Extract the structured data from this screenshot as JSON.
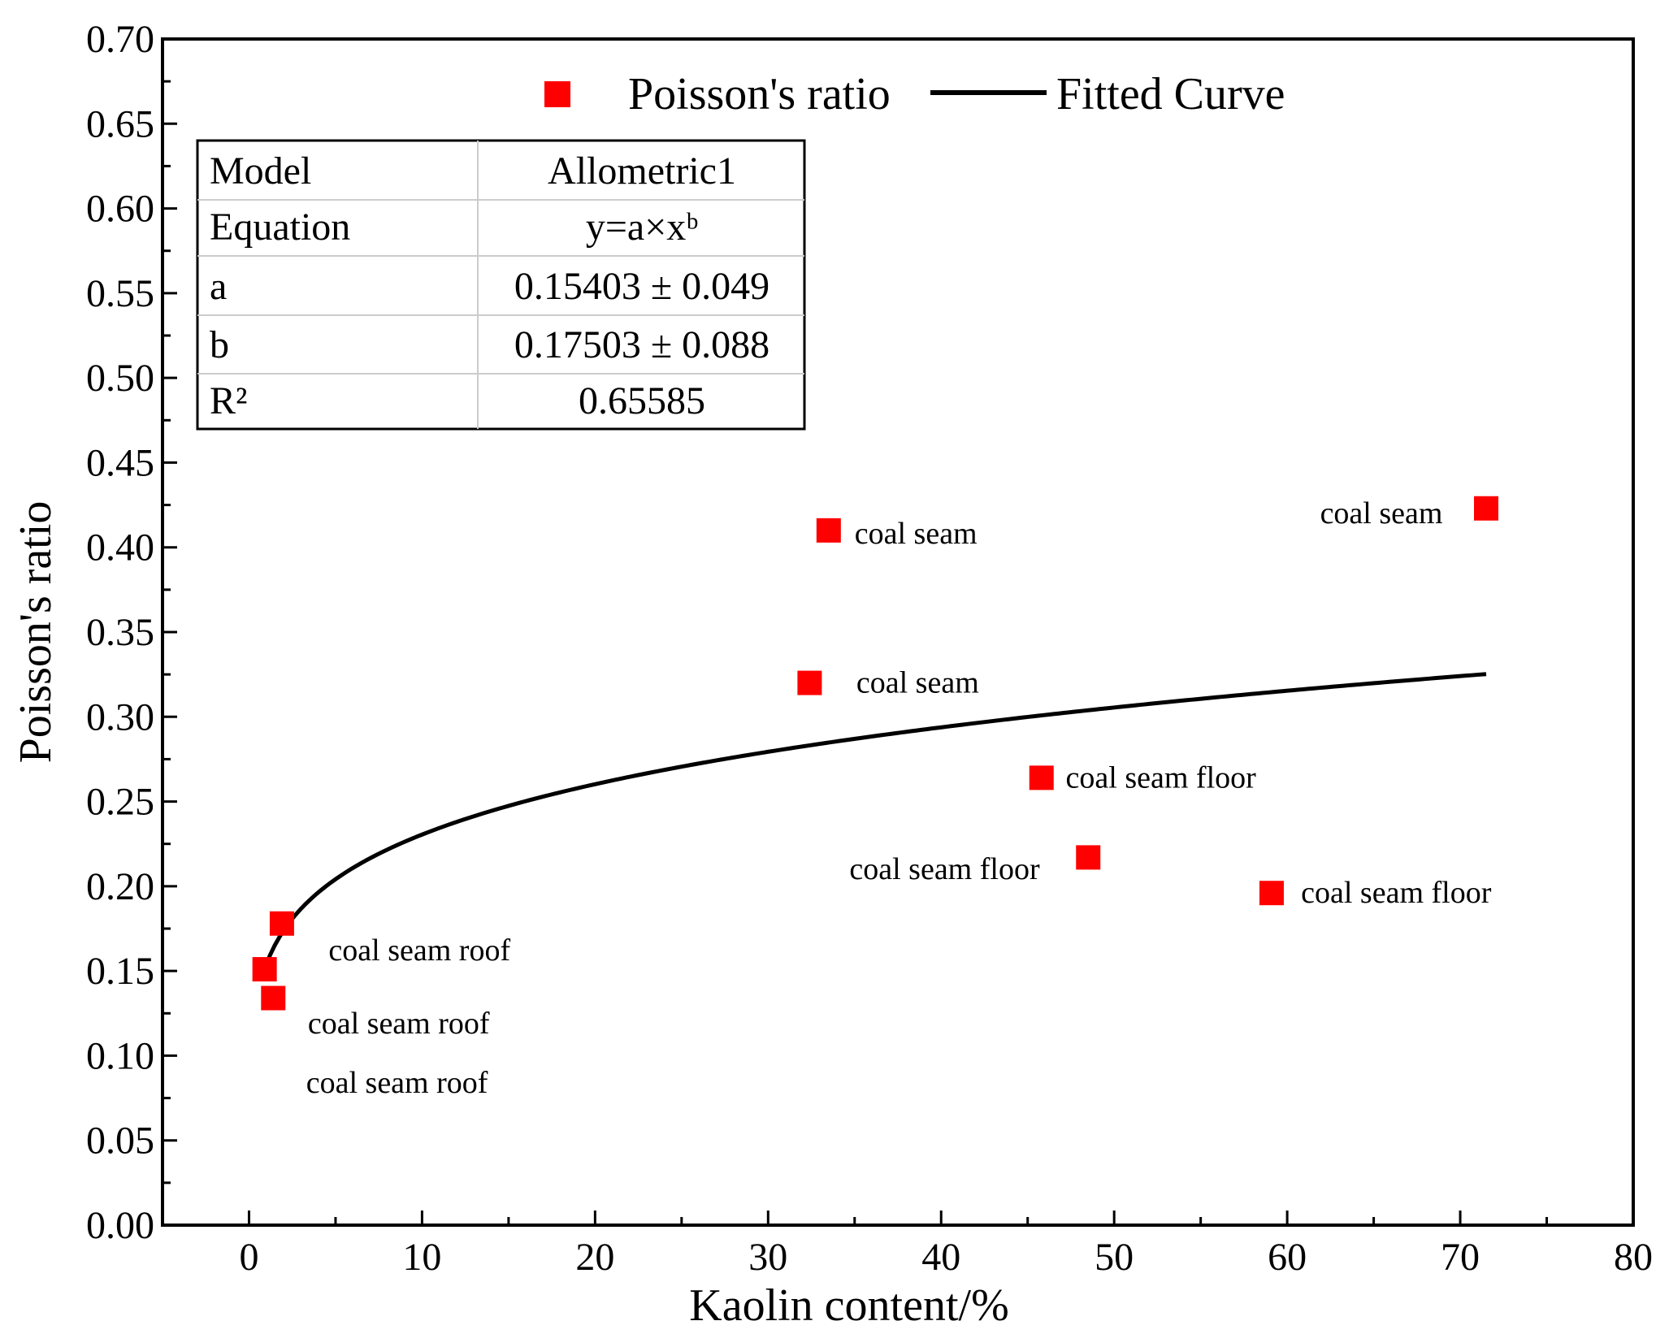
{
  "chart_data": {
    "type": "scatter",
    "xlabel": "Kaolin content/%",
    "ylabel": "Poisson's ratio",
    "xlim": [
      -5,
      80
    ],
    "ylim": [
      0.0,
      0.7
    ],
    "xticks": [
      "0",
      "10",
      "20",
      "30",
      "40",
      "50",
      "60",
      "70",
      "80"
    ],
    "yticks": [
      "0.00",
      "0.05",
      "0.10",
      "0.15",
      "0.20",
      "0.25",
      "0.30",
      "0.35",
      "0.40",
      "0.45",
      "0.50",
      "0.55",
      "0.60",
      "0.65",
      "0.70"
    ],
    "legend": {
      "scatter_label": "Poisson's ratio",
      "line_label": "Fitted Curve",
      "position": "top-center"
    },
    "series": [
      {
        "name": "Poisson's ratio",
        "kind": "scatter",
        "color": "#ff0000",
        "points": [
          {
            "x": 0.9,
            "y": 0.151
          },
          {
            "x": 1.4,
            "y": 0.134
          },
          {
            "x": 1.9,
            "y": 0.178
          },
          {
            "x": 32.4,
            "y": 0.32
          },
          {
            "x": 33.5,
            "y": 0.41
          },
          {
            "x": 45.8,
            "y": 0.264
          },
          {
            "x": 48.5,
            "y": 0.217
          },
          {
            "x": 59.1,
            "y": 0.196
          },
          {
            "x": 71.5,
            "y": 0.423
          }
        ]
      },
      {
        "name": "Fitted Curve",
        "kind": "line",
        "color": "#000000",
        "model": {
          "a": 0.15403,
          "b": 0.17503
        },
        "x_range": [
          0.9,
          71.5
        ]
      }
    ],
    "annotations": [
      {
        "text": "coal seam",
        "x": 35.0,
        "y": 0.408
      },
      {
        "text": "coal seam",
        "x": 35.1,
        "y": 0.32
      },
      {
        "text": "coal seam",
        "x": 61.9,
        "y": 0.42
      },
      {
        "text": "coal seam floor",
        "x": 47.2,
        "y": 0.264
      },
      {
        "text": "coal seam floor",
        "x": 34.7,
        "y": 0.21
      },
      {
        "text": "coal seam floor",
        "x": 60.8,
        "y": 0.196
      },
      {
        "text": "coal seam roof",
        "x": 4.6,
        "y": 0.162
      },
      {
        "text": "coal seam roof",
        "x": 3.4,
        "y": 0.119
      },
      {
        "text": "coal seam roof",
        "x": 3.3,
        "y": 0.084
      }
    ],
    "fit_table": {
      "rows": [
        {
          "label": "Model",
          "value": "Allometric1"
        },
        {
          "label": "Equation",
          "value": "y=a×xᵇ"
        },
        {
          "label": "a",
          "value": "0.15403 ± 0.049"
        },
        {
          "label": "b",
          "value": "0.17503 ± 0.088"
        },
        {
          "label": "R²",
          "value": "0.65585"
        }
      ]
    }
  }
}
